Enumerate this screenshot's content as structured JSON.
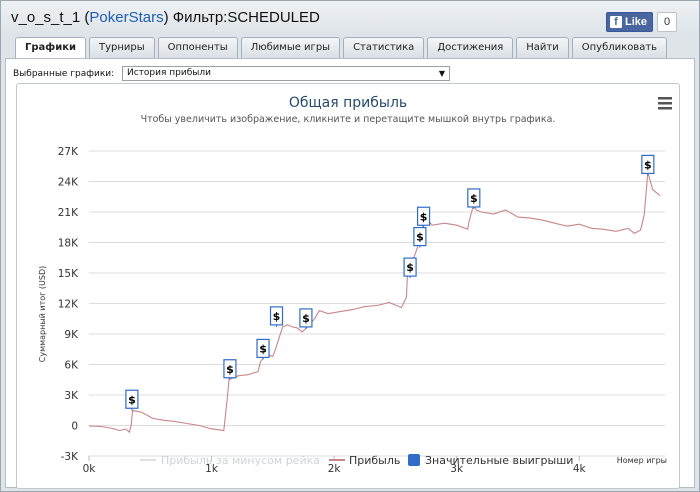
{
  "window": {
    "title_user": "v_o_s_t_1",
    "title_open": " (",
    "title_site": "PokerStars",
    "title_close": ")",
    "title_filter": " Фильтр:SCHEDULED",
    "fb_like": "Like",
    "fb_count": "0"
  },
  "tabs": [
    {
      "label": "Графики"
    },
    {
      "label": "Турниры"
    },
    {
      "label": "Оппоненты"
    },
    {
      "label": "Любимые игры"
    },
    {
      "label": "Статистика"
    },
    {
      "label": "Достижения"
    },
    {
      "label": "Найти"
    },
    {
      "label": "Опубликовать"
    }
  ],
  "filter": {
    "label": "Выбранные графики:",
    "selected": "История прибыли"
  },
  "chart_data": {
    "type": "line",
    "title": "Общая прибыль",
    "subtitle": "Чтобы увеличить изображение, кликните и перетащите мышкой внутрь графика.",
    "xlabel": "Номер игры",
    "ylabel": "Суммарный итог (USD)",
    "xlim": [
      0,
      4700
    ],
    "ylim": [
      -3000,
      27000
    ],
    "x_ticks": [
      "0k",
      "1k",
      "2k",
      "3k",
      "4k"
    ],
    "y_ticks": [
      "-3K",
      "0",
      "3K",
      "6K",
      "9K",
      "12K",
      "15K",
      "18K",
      "21K",
      "24K",
      "27K"
    ],
    "grid": "horizontal",
    "legend_position": "bottom",
    "colors": {
      "profit": "#c9868a",
      "profit_no_rake": "#dfe1e4",
      "big_wins": "#2e6cc7",
      "grid": "#dcdcdc"
    },
    "series": [
      {
        "name": "Прибыль",
        "x": [
          0,
          100,
          200,
          250,
          300,
          330,
          345,
          355,
          430,
          520,
          620,
          700,
          800,
          900,
          990,
          1100,
          1130,
          1145,
          1160,
          1220,
          1300,
          1380,
          1400,
          1450,
          1500,
          1530,
          1580,
          1620,
          1660,
          1700,
          1740,
          1800,
          1840,
          1880,
          1950,
          2050,
          2150,
          2250,
          2350,
          2450,
          2550,
          2590,
          2600,
          2620,
          2650,
          2680,
          2700,
          2720,
          2740,
          2760,
          2800,
          2900,
          3000,
          3090,
          3100,
          3140,
          3160,
          3200,
          3300,
          3400,
          3500,
          3600,
          3700,
          3800,
          3900,
          4000,
          4100,
          4200,
          4300,
          4400,
          4450,
          4500,
          4530,
          4560,
          4600,
          4660
        ],
        "y": [
          -50,
          -100,
          -300,
          -500,
          -350,
          -650,
          100,
          1500,
          1300,
          700,
          500,
          400,
          200,
          0,
          -300,
          -500,
          2900,
          4800,
          4600,
          4900,
          5000,
          5300,
          6300,
          7000,
          6800,
          7800,
          9700,
          9900,
          9700,
          9600,
          9200,
          9900,
          10500,
          11300,
          11000,
          11200,
          11400,
          11700,
          11800,
          12100,
          11600,
          12600,
          15100,
          15300,
          16500,
          17500,
          19000,
          19300,
          20400,
          20300,
          19700,
          19900,
          19700,
          19300,
          20000,
          21800,
          21200,
          21000,
          20800,
          21200,
          20500,
          20400,
          20200,
          19900,
          19600,
          19800,
          19400,
          19300,
          19100,
          19400,
          18900,
          19200,
          20700,
          24900,
          23200,
          22600
        ]
      },
      {
        "name": "Прибыль за минусом рейка"
      },
      {
        "name": "Значительные выигрыши",
        "marker_label": "$",
        "points": [
          {
            "x": 350,
            "y": 1500
          },
          {
            "x": 1150,
            "y": 4500
          },
          {
            "x": 1420,
            "y": 6500
          },
          {
            "x": 1530,
            "y": 9700
          },
          {
            "x": 1770,
            "y": 9500
          },
          {
            "x": 2620,
            "y": 14500
          },
          {
            "x": 2700,
            "y": 17500
          },
          {
            "x": 2730,
            "y": 19500
          },
          {
            "x": 3140,
            "y": 21300
          },
          {
            "x": 4560,
            "y": 24600
          }
        ]
      }
    ]
  }
}
